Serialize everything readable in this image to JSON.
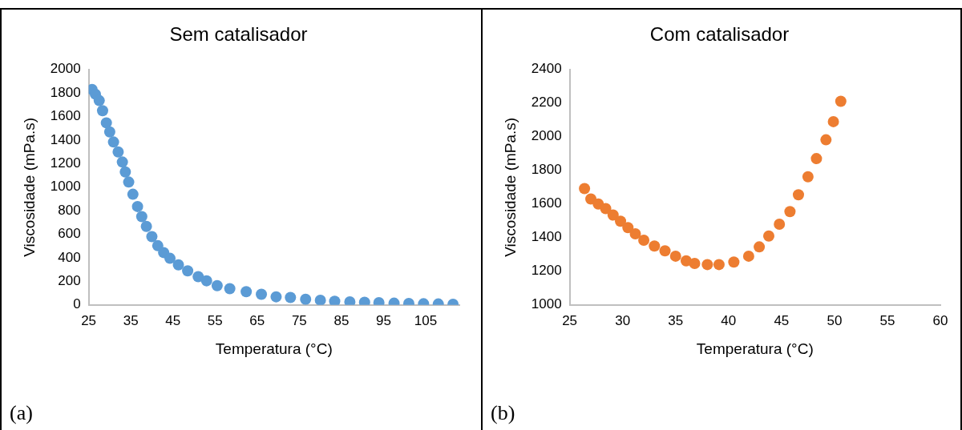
{
  "chart_data": [
    {
      "type": "scatter",
      "title": "Sem catalisador",
      "xlabel": "Temperatura (°C)",
      "ylabel": "Viscosidade (mPa.s)",
      "annotations": [
        "(a)"
      ],
      "marker": "circle",
      "grid": false,
      "legend": false,
      "xlim": [
        25,
        113
      ],
      "xticks": [
        25,
        35,
        45,
        55,
        65,
        75,
        85,
        95,
        105
      ],
      "ylim": [
        0,
        2000
      ],
      "yticks": [
        0,
        200,
        400,
        600,
        800,
        1000,
        1200,
        1400,
        1600,
        1800,
        2000
      ],
      "series": [
        {
          "color": "#5b9bd5",
          "x": [
            25.8,
            26.6,
            27.5,
            28.3,
            29.2,
            30.0,
            30.9,
            32.0,
            33.0,
            33.7,
            34.5,
            35.5,
            36.6,
            37.6,
            38.7,
            40.0,
            41.4,
            42.8,
            44.3,
            46.3,
            48.5,
            51.0,
            53.0,
            55.5,
            58.5,
            62.4,
            66.0,
            69.5,
            72.9,
            76.5,
            80.0,
            83.4,
            87.0,
            90.5,
            93.9,
            97.5,
            101.0,
            104.5,
            108.0,
            111.5
          ],
          "values": [
            1830,
            1790,
            1736,
            1650,
            1547,
            1470,
            1384,
            1300,
            1214,
            1130,
            1044,
            940,
            836,
            750,
            667,
            580,
            503,
            445,
            396,
            340,
            289,
            240,
            205,
            164,
            138,
            113,
            90,
            69,
            63,
            48,
            40,
            31,
            26,
            22,
            19,
            15,
            12,
            10,
            8,
            6
          ]
        }
      ]
    },
    {
      "type": "scatter",
      "title": "Com catalisador",
      "xlabel": "Temperatura (°C)",
      "ylabel": "Viscosidade (mPa.s)",
      "annotations": [
        "(b)"
      ],
      "marker": "circle",
      "grid": false,
      "legend": false,
      "xlim": [
        25,
        60
      ],
      "xticks": [
        25,
        30,
        35,
        40,
        45,
        50,
        55,
        60
      ],
      "ylim": [
        1000,
        2400
      ],
      "yticks": [
        1000,
        1200,
        1400,
        1600,
        1800,
        2000,
        2200,
        2400
      ],
      "series": [
        {
          "color": "#ed7d31",
          "x": [
            26.4,
            27.0,
            27.7,
            28.4,
            29.1,
            29.8,
            30.5,
            31.2,
            32.0,
            33.0,
            34.0,
            35.0,
            36.0,
            36.8,
            38.0,
            39.1,
            40.5,
            41.9,
            42.9,
            43.8,
            44.8,
            45.8,
            46.6,
            47.5,
            48.3,
            49.2,
            49.9,
            50.6
          ],
          "values": [
            1692,
            1630,
            1600,
            1573,
            1535,
            1498,
            1460,
            1423,
            1385,
            1350,
            1322,
            1290,
            1262,
            1247,
            1240,
            1240,
            1255,
            1290,
            1345,
            1410,
            1480,
            1555,
            1655,
            1762,
            1870,
            1982,
            2090,
            2211
          ]
        }
      ]
    }
  ]
}
